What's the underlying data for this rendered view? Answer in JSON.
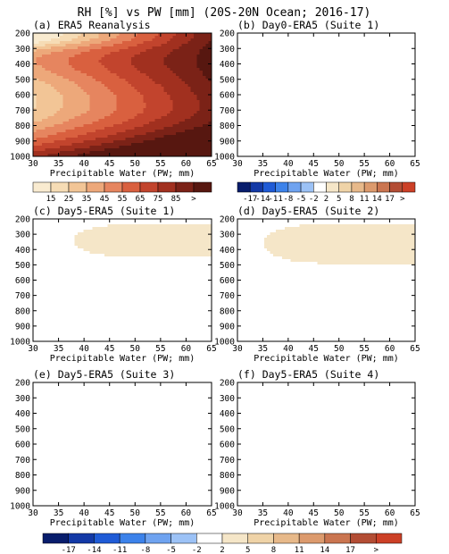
{
  "title": "RH [%] vs PW [mm] (20S-20N Ocean; 2016-17)",
  "colors": {
    "reanalysis": [
      "#f9ebd0",
      "#f6dcb5",
      "#f2c596",
      "#eda87a",
      "#e6855f",
      "#d9603f",
      "#c2442d",
      "#a1301f",
      "#7b2217",
      "#571710"
    ],
    "difference": [
      "#081d6c",
      "#1339a6",
      "#1f5bd6",
      "#3c82ea",
      "#6fa3f0",
      "#9cc2f6",
      "#ffffff",
      "#f5e6c8",
      "#efd3a7",
      "#e7b98a",
      "#dc9a6d",
      "#ca7550",
      "#b34d34",
      "#cc4027"
    ]
  },
  "chart_data": [
    {
      "id": "a",
      "type": "heatmap",
      "title": "(a) ERA5 Reanalysis",
      "xlabel": "Precipitable Water (PW; mm)",
      "ylabel": "",
      "xlim": [
        30,
        65
      ],
      "ylim": [
        1000,
        200
      ],
      "x_ticks": [
        "30",
        "35",
        "40",
        "45",
        "50",
        "55",
        "60",
        "65"
      ],
      "y_ticks": [
        "200",
        "300",
        "400",
        "500",
        "600",
        "700",
        "800",
        "900",
        "1000"
      ],
      "colorbar": {
        "labels": [
          "15",
          "25",
          "35",
          "45",
          "55",
          "65",
          "75",
          "85",
          ">"
        ],
        "bins": 10
      },
      "field": "reanalysis"
    },
    {
      "id": "b",
      "type": "heatmap",
      "title": "(b) Day0-ERA5 (Suite 1)",
      "xlabel": "Precipitable Water (PW; mm)",
      "ylabel": "",
      "xlim": [
        30,
        65
      ],
      "ylim": [
        1000,
        200
      ],
      "x_ticks": [
        "30",
        "35",
        "40",
        "45",
        "50",
        "55",
        "60",
        "65"
      ],
      "y_ticks": [
        "200",
        "300",
        "400",
        "500",
        "600",
        "700",
        "800",
        "900",
        "1000"
      ],
      "colorbar": {
        "labels": [
          "-17",
          "-14",
          "-11",
          "-8",
          "-5",
          "-2",
          "2",
          "5",
          "8",
          "11",
          "14",
          "17",
          ">"
        ],
        "bins": 14
      },
      "field": "day0"
    },
    {
      "id": "c",
      "type": "heatmap",
      "title": "(c) Day5-ERA5 (Suite 1)",
      "xlabel": "Precipitable Water (PW; mm)",
      "ylabel": "",
      "xlim": [
        30,
        65
      ],
      "ylim": [
        1000,
        200
      ],
      "x_ticks": [
        "30",
        "35",
        "40",
        "45",
        "50",
        "55",
        "60",
        "65"
      ],
      "y_ticks": [
        "200",
        "300",
        "400",
        "500",
        "600",
        "700",
        "800",
        "900",
        "1000"
      ],
      "field": "suite1"
    },
    {
      "id": "d",
      "type": "heatmap",
      "title": "(d) Day5-ERA5 (Suite 2)",
      "xlabel": "Precipitable Water (PW; mm)",
      "ylabel": "",
      "xlim": [
        30,
        65
      ],
      "ylim": [
        1000,
        200
      ],
      "x_ticks": [
        "30",
        "35",
        "40",
        "45",
        "50",
        "55",
        "60",
        "65"
      ],
      "y_ticks": [
        "200",
        "300",
        "400",
        "500",
        "600",
        "700",
        "800",
        "900",
        "1000"
      ],
      "field": "suite2"
    },
    {
      "id": "e",
      "type": "heatmap",
      "title": "(e) Day5-ERA5 (Suite 3)",
      "xlabel": "Precipitable Water (PW; mm)",
      "ylabel": "",
      "xlim": [
        30,
        65
      ],
      "ylim": [
        1000,
        200
      ],
      "x_ticks": [
        "30",
        "35",
        "40",
        "45",
        "50",
        "55",
        "60",
        "65"
      ],
      "y_ticks": [
        "200",
        "300",
        "400",
        "500",
        "600",
        "700",
        "800",
        "900",
        "1000"
      ],
      "field": "suite3"
    },
    {
      "id": "f",
      "type": "heatmap",
      "title": "(f) Day5-ERA5 (Suite 4)",
      "xlabel": "Precipitable Water (PW; mm)",
      "ylabel": "",
      "xlim": [
        30,
        65
      ],
      "ylim": [
        1000,
        200
      ],
      "x_ticks": [
        "30",
        "35",
        "40",
        "45",
        "50",
        "55",
        "60",
        "65"
      ],
      "y_ticks": [
        "200",
        "300",
        "400",
        "500",
        "600",
        "700",
        "800",
        "900",
        "1000"
      ],
      "field": "suite4"
    }
  ],
  "bottom_colorbar": {
    "labels": [
      "-17",
      "-14",
      "-11",
      "-8",
      "-5",
      "-2",
      "2",
      "5",
      "8",
      "11",
      "14",
      "17",
      ">"
    ],
    "bins": 14
  }
}
